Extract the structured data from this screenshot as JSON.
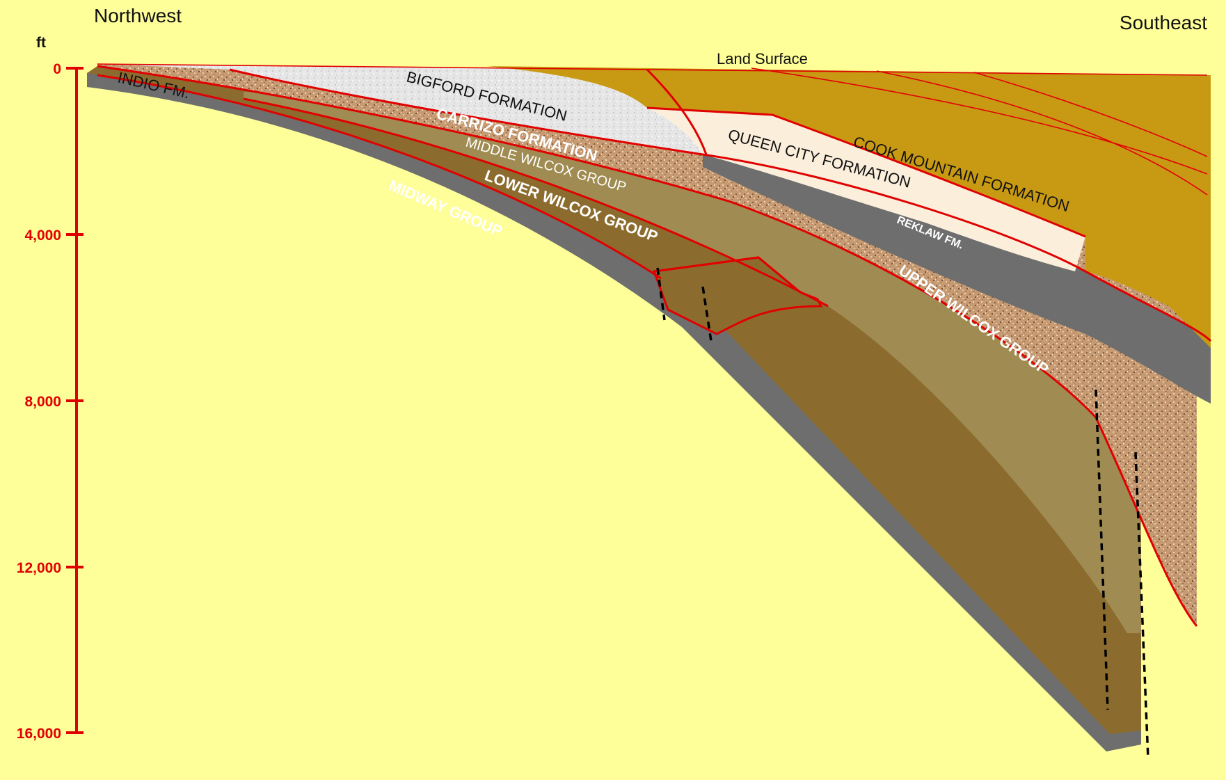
{
  "directions": {
    "left": "Northwest",
    "right": "Southeast"
  },
  "depth_axis": {
    "unit": "ft",
    "ticks": [
      "0",
      "4,000",
      "8,000",
      "12,000",
      "16,000"
    ]
  },
  "land_surface_label": "Land Surface",
  "formations": {
    "indio": "INDIO FM.",
    "bigford": "BIGFORD FORMATION",
    "carrizo": "CARRIZO FORMATION",
    "middle_wilcox": "MIDDLE WILCOX GROUP",
    "lower_wilcox": "LOWER WILCOX GROUP",
    "midway": "MIDWAY GROUP",
    "queen_city": "QUEEN CITY FORMATION",
    "cook_mountain": "COOK MOUNTAIN FORMATION",
    "reklaw": "REKLAW FM.",
    "upper_wilcox": "UPPER WILCOX GROUP"
  },
  "colors": {
    "background": "#FFFF99",
    "contact_line": "#E00000",
    "midway": "#6E6E6E",
    "lower_wilcox": "#8C6C2E",
    "middle_wilcox": "#A08C52",
    "sand": "#C69A72",
    "bigford": "#E4E4E4",
    "queen_city": "#FBEFDC",
    "cook_mountain": "#C89A14",
    "reklaw": "#6E6E6E"
  }
}
